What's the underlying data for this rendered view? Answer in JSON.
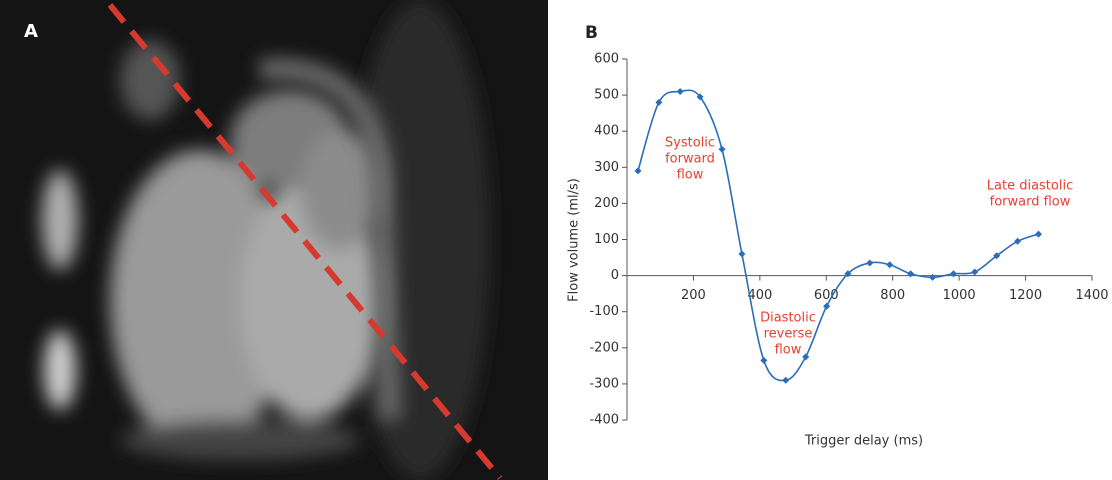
{
  "image": {
    "label": "A"
  },
  "chart_data": {
    "type": "line",
    "panel_label": "B",
    "x_label": "Trigger delay (ms)",
    "y_label": "Flow volume (ml/s)",
    "xlim": [
      0,
      1400
    ],
    "ylim": [
      -400,
      600
    ],
    "xticks": [
      200,
      400,
      600,
      800,
      1000,
      1200,
      1400
    ],
    "yticks": [
      -400,
      -300,
      -200,
      -100,
      0,
      100,
      200,
      300,
      400,
      500,
      600
    ],
    "x": [
      33,
      96,
      160,
      220,
      286,
      346,
      412,
      478,
      538,
      601,
      665,
      731,
      791,
      854,
      920,
      983,
      1047,
      1113,
      1176,
      1239
    ],
    "series": [
      {
        "color": "#2a6ebb",
        "values": [
          290,
          480,
          510,
          495,
          350,
          60,
          -235,
          -290,
          -225,
          -85,
          5,
          35,
          30,
          5,
          -5,
          5,
          10,
          55,
          95,
          115
        ]
      }
    ],
    "annotations": [
      {
        "lines": [
          "Systolic",
          "forward",
          "flow"
        ]
      },
      {
        "lines": [
          "Diastolic",
          "reverse",
          "flow"
        ]
      },
      {
        "lines": [
          "Late diastolic",
          "forward flow"
        ]
      }
    ]
  }
}
